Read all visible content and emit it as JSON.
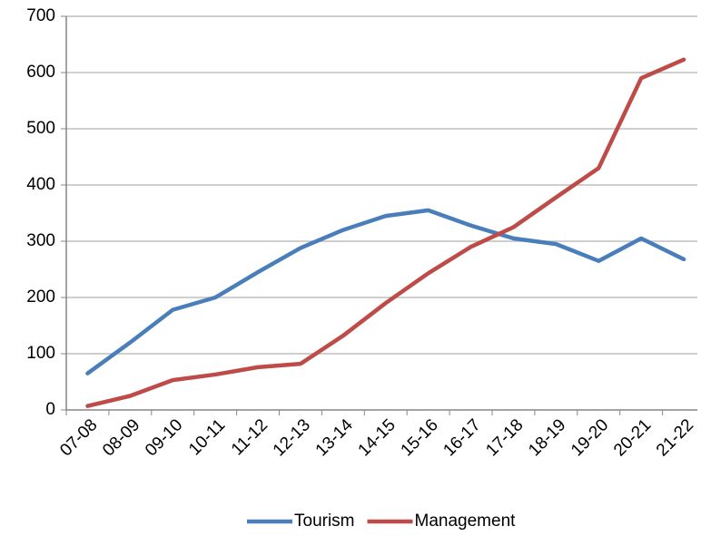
{
  "chart_data": {
    "type": "line",
    "categories": [
      "07-08",
      "08-09",
      "09-10",
      "10-11",
      "11-12",
      "12-13",
      "13-14",
      "14-15",
      "15-16",
      "16-17",
      "17-18",
      "18-19",
      "19-20",
      "20-21",
      "21-22"
    ],
    "series": [
      {
        "name": "Tourism",
        "color": "#4a7ebb",
        "values": [
          65,
          120,
          178,
          200,
          245,
          288,
          320,
          345,
          355,
          328,
          305,
          295,
          265,
          305,
          268
        ]
      },
      {
        "name": "Management",
        "color": "#be4b48",
        "values": [
          7,
          25,
          53,
          63,
          76,
          82,
          132,
          190,
          243,
          290,
          325,
          378,
          430,
          590,
          623
        ]
      }
    ],
    "ylim": [
      0,
      700
    ],
    "yticks": [
      0,
      100,
      200,
      300,
      400,
      500,
      600,
      700
    ],
    "grid": true,
    "legend": "bottom"
  }
}
